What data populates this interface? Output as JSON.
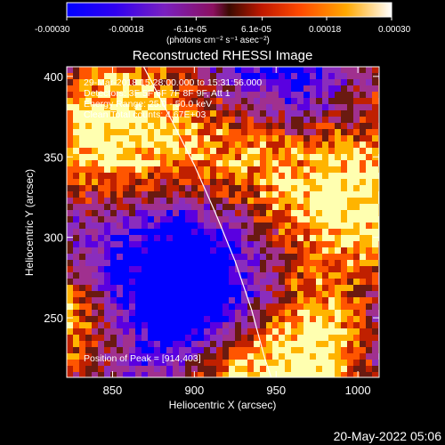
{
  "colorbar": {
    "tick_labels": [
      "-0.00030",
      "-0.00018",
      "-6.1e-05",
      "6.1e-05",
      "0.00018",
      "0.00030"
    ],
    "tick_values": [
      -0.0003,
      -0.00018,
      -6.1e-05,
      6.1e-05,
      0.00018,
      0.0003
    ],
    "range": [
      -0.0003,
      0.0003
    ],
    "unit_label": "(photons cm⁻² s⁻¹ asec⁻²)"
  },
  "chart_data": {
    "type": "heatmap",
    "title": "Reconstructed RHESSI Image",
    "xlabel": "Heliocentric X (arcsec)",
    "ylabel": "Heliocentric Y (arcsec)",
    "xlim": [
      822,
      1013
    ],
    "ylim": [
      213,
      406
    ],
    "x_ticks": [
      850,
      900,
      950,
      1000
    ],
    "y_ticks": [
      250,
      300,
      350,
      400
    ],
    "x_tick_labels": [
      "850",
      "900",
      "950",
      "1000"
    ],
    "y_tick_labels": [
      "250",
      "300",
      "350",
      "400"
    ],
    "colormap": [
      "#0000ff",
      "#5a00e0",
      "#8a2dbd",
      "#a0308f",
      "#6a1a10",
      "#c02000",
      "#ff5500",
      "#ffb400",
      "#ffffb0"
    ],
    "annotations": [
      "29-Mar-2018 15:28:00.000 to 15:31:56.000",
      "Detectors: 3F 5F 6F 7F 8F 9F, Att 1",
      "Energy Range: 25.0 - 50.0 keV",
      "Clean     Total counts: 4.67E+03",
      "Position of Peak = [914,403]"
    ],
    "peak": [
      914,
      403
    ],
    "limb_curve": [
      [
        869,
        406
      ],
      [
        885,
        375
      ],
      [
        900,
        345
      ],
      [
        913,
        315
      ],
      [
        925,
        285
      ],
      [
        935,
        255
      ],
      [
        943,
        225
      ],
      [
        947,
        213
      ]
    ]
  },
  "footer": {
    "timestamp": "20-May-2022 05:06"
  }
}
